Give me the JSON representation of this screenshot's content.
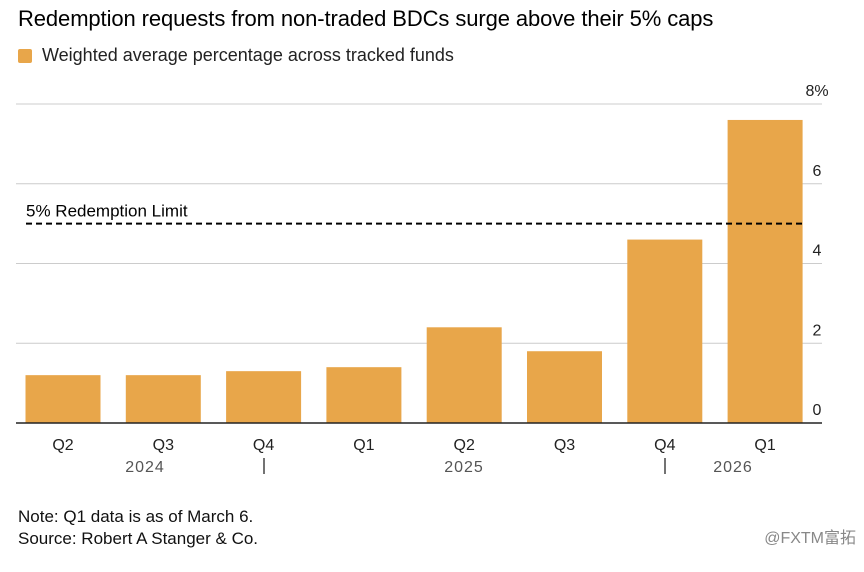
{
  "title": "Redemption requests from non-traded BDCs surge above their 5% caps",
  "legend_label": "Weighted average percentage across tracked funds",
  "reference_line_label": "5% Redemption Limit",
  "note": "Note: Q1 data is as of March 6.",
  "source": "Source: Robert A Stanger & Co.",
  "watermark": "@FXTM富拓",
  "colors": {
    "bar": "#E8A64A",
    "grid": "#cccccc",
    "axis": "#222222",
    "reference_line": "#000000"
  },
  "chart_data": {
    "type": "bar",
    "categories": [
      "Q2",
      "Q3",
      "Q4",
      "Q1",
      "Q2",
      "Q3",
      "Q4",
      "Q1"
    ],
    "year_labels": [
      "2024",
      "2025",
      "2026"
    ],
    "series": [
      {
        "name": "Weighted average percentage across tracked funds",
        "values": [
          1.2,
          1.2,
          1.3,
          1.4,
          2.4,
          1.8,
          4.6,
          7.6
        ]
      }
    ],
    "reference_line": {
      "value": 5,
      "label": "5% Redemption Limit",
      "style": "dashed"
    },
    "ylim": [
      0,
      8
    ],
    "yticks": [
      {
        "value": 0,
        "label": "0"
      },
      {
        "value": 2,
        "label": "2"
      },
      {
        "value": 4,
        "label": "4"
      },
      {
        "value": 6,
        "label": "6"
      },
      {
        "value": 8,
        "label": "8%"
      }
    ],
    "yaxis_position": "right",
    "grid": true,
    "legend_placement": "top-left"
  }
}
